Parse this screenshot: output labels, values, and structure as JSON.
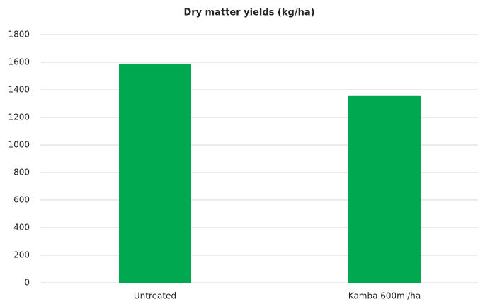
{
  "chart_data": {
    "type": "bar",
    "title": "Dry matter yields (kg/ha)",
    "categories": [
      "Untreated",
      "Kamba 600ml/ha"
    ],
    "values": [
      1590,
      1355
    ],
    "color": "#00a84f",
    "ylim": [
      0,
      1800
    ],
    "yticks": [
      0,
      200,
      400,
      600,
      800,
      1000,
      1200,
      1400,
      1600,
      1800
    ],
    "grid": true
  }
}
